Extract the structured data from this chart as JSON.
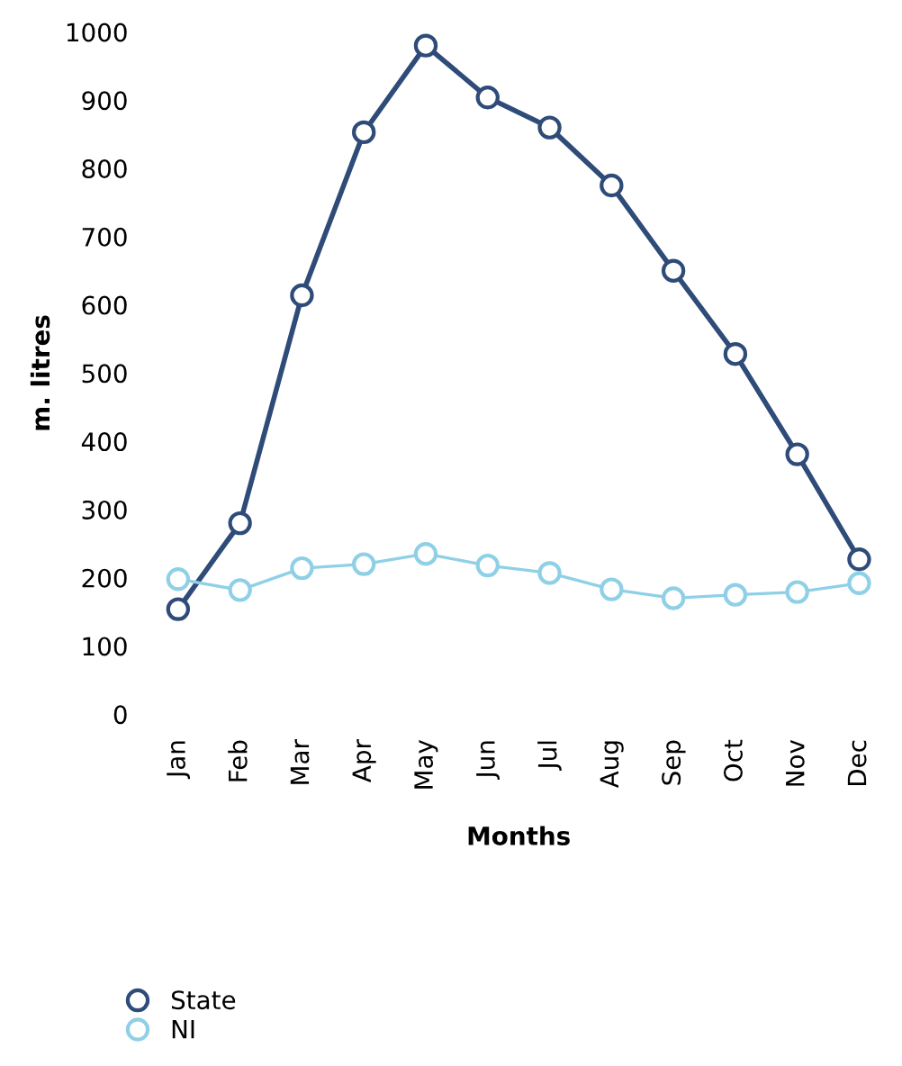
{
  "chart_data": {
    "type": "line",
    "xlabel": "Months",
    "ylabel": "m. litres",
    "categories": [
      "Jan",
      "Feb",
      "Mar",
      "Apr",
      "May",
      "Jun",
      "Jul",
      "Aug",
      "Sep",
      "Oct",
      "Nov",
      "Dec"
    ],
    "series": [
      {
        "name": "State",
        "color": "#2f4b78",
        "values": [
          154,
          280,
          614,
          853,
          980,
          904,
          860,
          775,
          650,
          528,
          381,
          227
        ]
      },
      {
        "name": "NI",
        "color": "#8fd0e6",
        "values": [
          198,
          182,
          214,
          220,
          235,
          218,
          207,
          183,
          170,
          175,
          179,
          192
        ]
      }
    ],
    "ylim": [
      0,
      1000
    ],
    "yticks": [
      0,
      100,
      200,
      300,
      400,
      500,
      600,
      700,
      800,
      900,
      1000
    ],
    "marker": "circle",
    "grid": false,
    "legend": "bottom left"
  }
}
